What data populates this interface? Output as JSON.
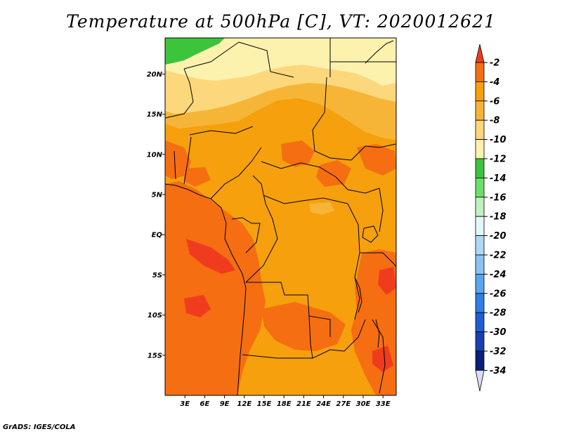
{
  "title": "Temperature at 500hPa [C], VT: 2020012621",
  "credit": "GrADS: IGES/COLA",
  "variable": "Temperature at 500hPa",
  "units": "C",
  "valid_time": "2020012621",
  "axes": {
    "lat_labels": [
      {
        "text": "20N",
        "lat": 20
      },
      {
        "text": "15N",
        "lat": 15
      },
      {
        "text": "10N",
        "lat": 10
      },
      {
        "text": "5N",
        "lat": 5
      },
      {
        "text": "EQ",
        "lat": 0
      },
      {
        "text": "5S",
        "lat": -5
      },
      {
        "text": "10S",
        "lat": -10
      },
      {
        "text": "15S",
        "lat": -15
      }
    ],
    "lon_labels": [
      {
        "text": "3E",
        "lon": 3
      },
      {
        "text": "6E",
        "lon": 6
      },
      {
        "text": "9E",
        "lon": 9
      },
      {
        "text": "12E",
        "lon": 12
      },
      {
        "text": "15E",
        "lon": 15
      },
      {
        "text": "18E",
        "lon": 18
      },
      {
        "text": "21E",
        "lon": 21
      },
      {
        "text": "24E",
        "lon": 24
      },
      {
        "text": "27E",
        "lon": 27
      },
      {
        "text": "30E",
        "lon": 30
      },
      {
        "text": "33E",
        "lon": 33
      }
    ],
    "lon_range": [
      0,
      35
    ],
    "lat_range": [
      -20,
      24.5
    ]
  },
  "colorbar": {
    "labels": [
      "-2",
      "-4",
      "-6",
      "-8",
      "-10",
      "-12",
      "-14",
      "-16",
      "-18",
      "-20",
      "-22",
      "-24",
      "-26",
      "-28",
      "-30",
      "-32",
      "-34"
    ],
    "colors": [
      "#f03c1e",
      "#f56e12",
      "#f5a00c",
      "#f7b537",
      "#fdd77c",
      "#fdf2ad",
      "#3dc43d",
      "#6ae06a",
      "#bff2bf",
      "#e2f7fb",
      "#afd8f7",
      "#8ac2f2",
      "#59a6ec",
      "#2f7ee6",
      "#1c5fd3",
      "#1a3fb0",
      "#0b1f78",
      "#dcdcf5"
    ]
  },
  "colors": {
    "band_12_10": "#fdf2ad",
    "band_10_8": "#fdd77c",
    "band_8_6": "#f7b537",
    "band_6_4": "#f5a00c",
    "band_4_2": "#f56e12",
    "band_above_2": "#f03c1e",
    "band_14_12": "#3dc43d"
  }
}
